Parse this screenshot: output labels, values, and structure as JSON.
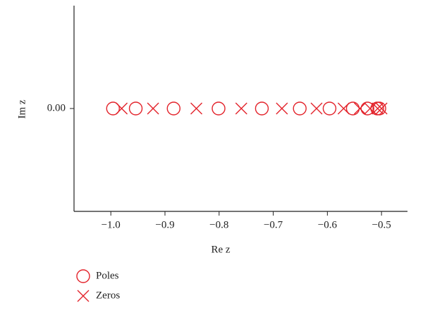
{
  "chart_data": {
    "type": "scatter",
    "x_label": "Re z",
    "y_label": "Im z",
    "xlim": [
      -1.068,
      -0.452
    ],
    "ylim": [
      -1,
      1
    ],
    "xticks": [
      {
        "value": -1.0,
        "label": "−1.0"
      },
      {
        "value": -0.9,
        "label": "−0.9"
      },
      {
        "value": -0.8,
        "label": "−0.8"
      },
      {
        "value": -0.7,
        "label": "−0.7"
      },
      {
        "value": -0.6,
        "label": "−0.6"
      },
      {
        "value": -0.5,
        "label": "−0.5"
      }
    ],
    "yticks": [
      {
        "value": 0,
        "label": "0.00"
      }
    ],
    "series": [
      {
        "name": "Poles",
        "color": "#e3232b",
        "marker": "circle",
        "x": [
          -0.996,
          -0.954,
          -0.884,
          -0.801,
          -0.721,
          -0.651,
          -0.596,
          -0.553,
          -0.526,
          -0.508,
          -0.504
        ],
        "values": [
          0,
          0,
          0,
          0,
          0,
          0,
          0,
          0,
          0,
          0,
          0
        ]
      },
      {
        "name": "Zeros",
        "color": "#e3232b",
        "marker": "x",
        "x": [
          -0.98,
          -0.922,
          -0.842,
          -0.759,
          -0.684,
          -0.62,
          -0.57,
          -0.54,
          -0.521,
          -0.507,
          -0.5
        ],
        "values": [
          0,
          0,
          0,
          0,
          0,
          0,
          0,
          0,
          0,
          0,
          0
        ]
      }
    ]
  }
}
